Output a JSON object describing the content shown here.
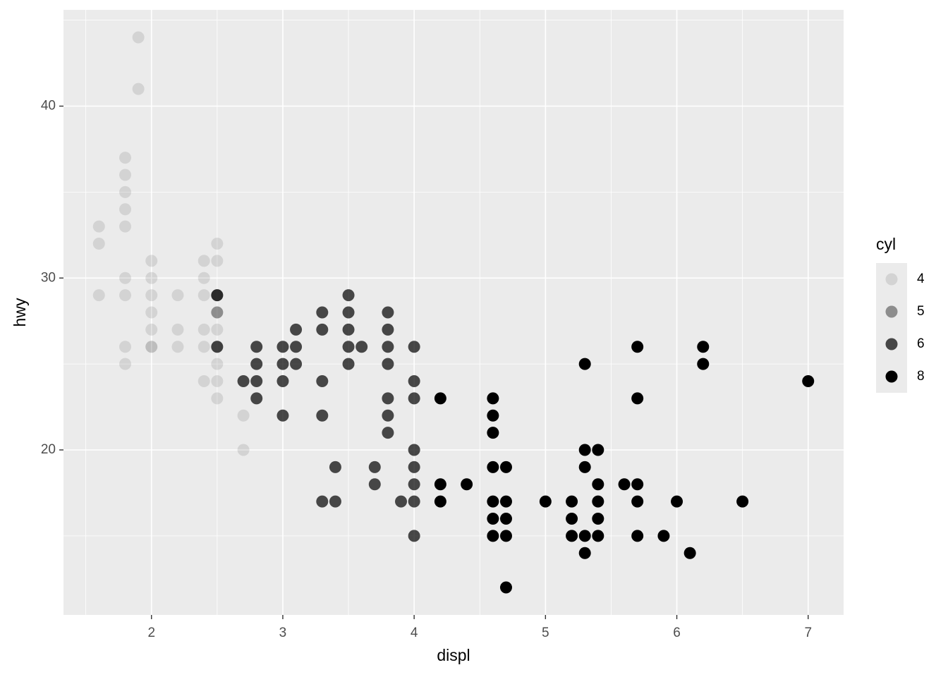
{
  "chart_data": {
    "type": "scatter",
    "x_label": "displ",
    "y_label": "hwy",
    "legend_title": "cyl",
    "legend_position": "right",
    "grid": true,
    "xlim": [
      1.33,
      7.27
    ],
    "ylim": [
      10.4,
      45.6
    ],
    "xticks": [
      2,
      3,
      4,
      5,
      6,
      7
    ],
    "yticks": [
      20,
      30,
      40
    ],
    "series": [
      {
        "name": "4",
        "color": "#000000",
        "alpha": 0.1,
        "x": [
          1.6,
          1.6,
          1.6,
          1.8,
          1.8,
          1.8,
          1.8,
          1.8,
          1.8,
          1.8,
          1.8,
          1.8,
          1.9,
          1.9,
          2.0,
          2.0,
          2.0,
          2.0,
          2.0,
          2.0,
          2.0,
          2.2,
          2.2,
          2.2,
          2.4,
          2.4,
          2.4,
          2.4,
          2.4,
          2.4,
          2.5,
          2.5,
          2.5,
          2.5,
          2.5,
          2.5,
          2.5,
          2.7,
          2.7
        ],
        "values": [
          33,
          32,
          29,
          37,
          36,
          35,
          34,
          33,
          30,
          29,
          26,
          25,
          44,
          41,
          31,
          30,
          29,
          28,
          27,
          26,
          26,
          29,
          27,
          26,
          31,
          30,
          29,
          27,
          26,
          24,
          32,
          31,
          27,
          26,
          25,
          24,
          23,
          22,
          20
        ]
      },
      {
        "name": "5",
        "color": "#000000",
        "alpha": 0.4,
        "x": [
          2.5,
          2.5
        ],
        "values": [
          28,
          29
        ]
      },
      {
        "name": "6",
        "color": "#000000",
        "alpha": 0.7,
        "x": [
          2.5,
          2.5,
          2.7,
          2.8,
          2.8,
          2.8,
          2.8,
          3.0,
          3.0,
          3.0,
          3.0,
          3.1,
          3.1,
          3.1,
          3.3,
          3.3,
          3.3,
          3.3,
          3.3,
          3.4,
          3.4,
          3.5,
          3.5,
          3.5,
          3.5,
          3.5,
          3.6,
          3.7,
          3.7,
          3.8,
          3.8,
          3.8,
          3.8,
          3.8,
          3.8,
          3.8,
          3.9,
          4.0,
          4.0,
          4.0,
          4.0,
          4.0,
          4.0,
          4.0,
          4.0
        ],
        "values": [
          29,
          26,
          24,
          26,
          25,
          24,
          23,
          26,
          25,
          24,
          22,
          27,
          26,
          25,
          28,
          27,
          24,
          22,
          17,
          19,
          17,
          29,
          28,
          27,
          26,
          25,
          26,
          19,
          18,
          28,
          27,
          26,
          25,
          23,
          22,
          21,
          17,
          26,
          24,
          23,
          20,
          19,
          18,
          17,
          15
        ]
      },
      {
        "name": "8",
        "color": "#000000",
        "alpha": 1,
        "x": [
          4.2,
          4.2,
          4.2,
          4.4,
          4.6,
          4.6,
          4.6,
          4.6,
          4.6,
          4.6,
          4.6,
          4.7,
          4.7,
          4.7,
          4.7,
          4.7,
          5.0,
          5.2,
          5.2,
          5.2,
          5.3,
          5.3,
          5.3,
          5.3,
          5.3,
          5.4,
          5.4,
          5.4,
          5.4,
          5.4,
          5.6,
          5.7,
          5.7,
          5.7,
          5.7,
          5.7,
          5.9,
          6.0,
          6.1,
          6.2,
          6.2,
          6.5,
          7.0
        ],
        "values": [
          23,
          18,
          17,
          18,
          23,
          22,
          21,
          19,
          17,
          16,
          15,
          19,
          17,
          16,
          15,
          12,
          17,
          17,
          16,
          15,
          25,
          20,
          19,
          15,
          14,
          20,
          18,
          17,
          16,
          15,
          18,
          26,
          23,
          18,
          17,
          15,
          15,
          17,
          14,
          26,
          25,
          17,
          24
        ]
      }
    ]
  }
}
